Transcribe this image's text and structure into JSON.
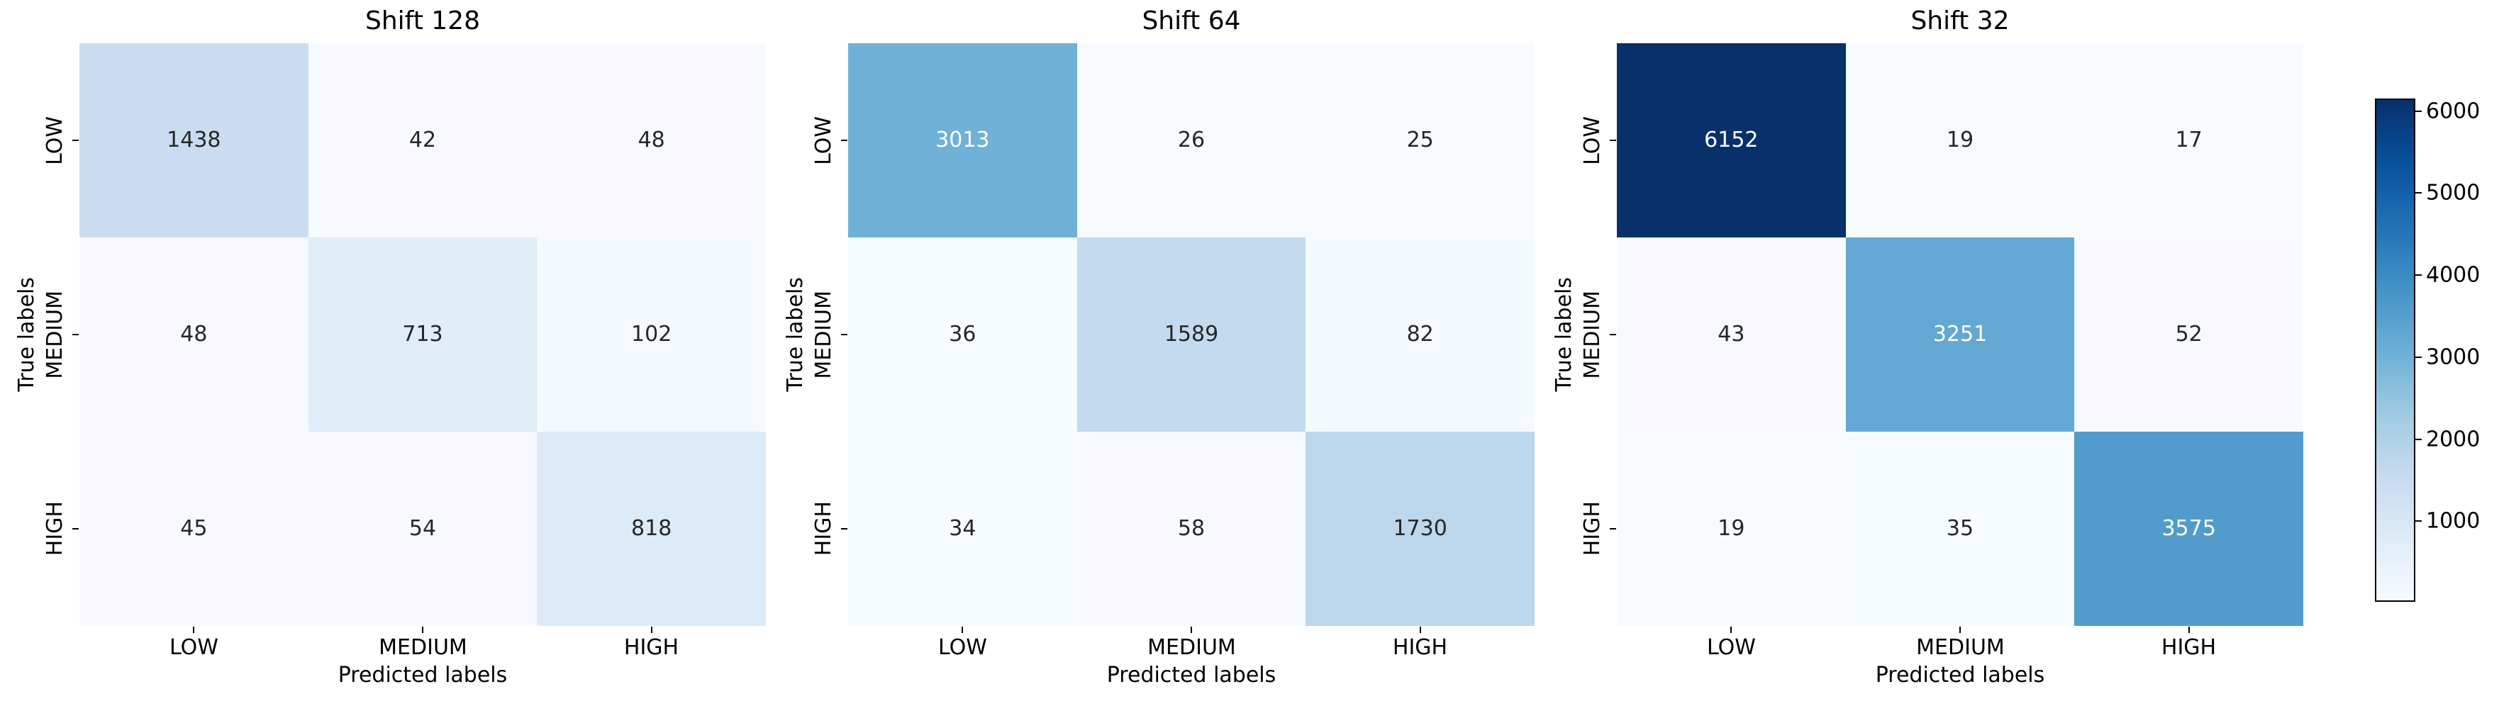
{
  "figure": {
    "background": "#ffffff"
  },
  "chart_data": {
    "type": "heatmap",
    "subtype": "confusion-matrix",
    "colormap": "Blues",
    "vmin": 17,
    "vmax": 6152,
    "x_categories": [
      "LOW",
      "MEDIUM",
      "HIGH"
    ],
    "y_categories": [
      "LOW",
      "MEDIUM",
      "HIGH"
    ],
    "xlabel": "Predicted labels",
    "ylabel": "True labels",
    "grid": false,
    "colorbar": {
      "position": "right",
      "ticks": [
        1000,
        2000,
        3000,
        4000,
        5000,
        6000
      ]
    },
    "matrices": [
      {
        "title": "Shift 128",
        "values": [
          [
            1438,
            42,
            48
          ],
          [
            48,
            713,
            102
          ],
          [
            45,
            54,
            818
          ]
        ]
      },
      {
        "title": "Shift 64",
        "values": [
          [
            3013,
            26,
            25
          ],
          [
            36,
            1589,
            82
          ],
          [
            34,
            58,
            1730
          ]
        ]
      },
      {
        "title": "Shift 32",
        "values": [
          [
            6152,
            19,
            17
          ],
          [
            43,
            3251,
            52
          ],
          [
            19,
            35,
            3575
          ]
        ]
      }
    ]
  },
  "colors": {
    "annotation_dark": "#262626",
    "annotation_light": "#ffffff",
    "axis_text": "#000000",
    "colorbar_outline": "#000000",
    "colormap_low": "#f7fbff",
    "colormap_high": "#08306b"
  }
}
